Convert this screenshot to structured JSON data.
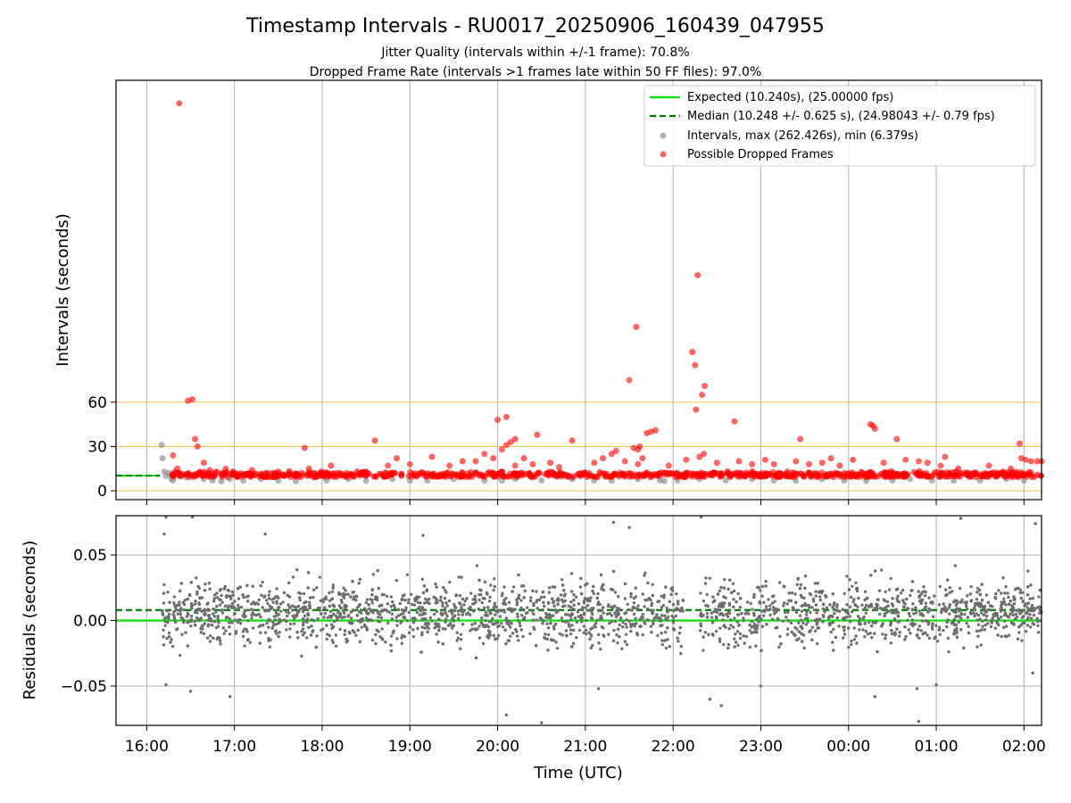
{
  "title": "Timestamp Intervals - RU0017_20250906_160439_047955",
  "subtitle1": "Jitter Quality (intervals within +/-1 frame): 70.8%",
  "subtitle2": "Dropped Frame Rate (intervals >1 frames late within 50 FF files): 97.0%",
  "colors": {
    "expected": "#00e600",
    "median": "#007f00",
    "intervals": "#808080",
    "dropped": "#ff0000",
    "threshold": "#ffa500",
    "grid": "#b0b0b0"
  },
  "chart_data": [
    {
      "type": "scatter",
      "title": "",
      "xlabel": "",
      "ylabel": "Intervals (seconds)",
      "x_unit": "hours since 16:00 UTC",
      "xlim": [
        -0.35,
        10.2
      ],
      "ylim": [
        -6,
        278
      ],
      "yticks": [
        0,
        30,
        60
      ],
      "xticks": [
        0,
        1,
        2,
        3,
        4,
        5,
        6,
        7,
        8,
        9,
        10
      ],
      "xtick_labels": [
        "16:00",
        "17:00",
        "18:00",
        "19:00",
        "20:00",
        "21:00",
        "22:00",
        "23:00",
        "00:00",
        "01:00",
        "02:00"
      ],
      "threshold_lines": [
        0,
        30,
        60
      ],
      "grid": "x",
      "legend_position": "top-right",
      "legend": [
        "Expected (10.240s), (25.00000 fps)",
        "Median (10.248 +/- 0.625 s), (24.98043 +/- 0.79 fps)",
        "Intervals, max (262.426s), min (6.379s)",
        "Possible Dropped Frames"
      ],
      "expected_value": 10.24,
      "median_value": 10.248,
      "reference_lines_xrange": [
        -0.35,
        0.15
      ],
      "series": [
        {
          "name": "Intervals, max (262.426s), min (6.379s)",
          "points": [
            [
              0.17,
              31
            ],
            [
              0.18,
              22
            ],
            [
              0.2,
              13
            ],
            [
              0.22,
              10
            ],
            [
              0.25,
              12
            ],
            [
              0.28,
              8
            ],
            [
              0.3,
              7
            ],
            [
              0.45,
              9
            ],
            [
              0.65,
              8
            ],
            [
              0.75,
              7
            ],
            [
              0.85,
              6.4
            ],
            [
              0.95,
              8
            ],
            [
              1.1,
              7
            ],
            [
              1.3,
              8
            ],
            [
              1.5,
              7
            ],
            [
              1.7,
              6.5
            ],
            [
              1.9,
              9
            ],
            [
              2.05,
              7
            ],
            [
              2.3,
              8
            ],
            [
              2.5,
              6.8
            ],
            [
              2.8,
              8
            ],
            [
              3.0,
              7
            ],
            [
              3.2,
              6.9
            ],
            [
              3.5,
              8
            ],
            [
              3.85,
              7
            ],
            [
              4.05,
              6.8
            ],
            [
              4.2,
              8
            ],
            [
              4.5,
              7
            ],
            [
              4.85,
              8
            ],
            [
              5.1,
              7
            ],
            [
              5.3,
              6.9
            ],
            [
              5.6,
              8
            ],
            [
              5.85,
              7
            ],
            [
              5.9,
              6.6
            ],
            [
              6.05,
              7
            ],
            [
              6.3,
              8
            ],
            [
              6.6,
              7
            ],
            [
              6.9,
              8
            ],
            [
              7.15,
              7
            ],
            [
              7.4,
              6.8
            ],
            [
              7.7,
              8
            ],
            [
              7.95,
              7
            ],
            [
              8.2,
              6.7
            ],
            [
              8.5,
              7
            ],
            [
              8.7,
              8
            ],
            [
              8.95,
              7
            ],
            [
              9.2,
              6.9
            ],
            [
              9.5,
              7
            ],
            [
              9.8,
              8
            ],
            [
              10.0,
              7
            ]
          ]
        },
        {
          "name": "Possible Dropped Frames",
          "points": [
            [
              0.37,
              262.4
            ],
            [
              0.47,
              61
            ],
            [
              0.52,
              62
            ],
            [
              0.55,
              35
            ],
            [
              0.58,
              30
            ],
            [
              0.3,
              24
            ],
            [
              0.35,
              15
            ],
            [
              0.65,
              19
            ],
            [
              0.72,
              14
            ],
            [
              0.9,
              15
            ],
            [
              1.2,
              14
            ],
            [
              1.5,
              13
            ],
            [
              1.8,
              29
            ],
            [
              1.85,
              15
            ],
            [
              2.1,
              17
            ],
            [
              2.4,
              13
            ],
            [
              2.6,
              34
            ],
            [
              2.75,
              17
            ],
            [
              2.85,
              22
            ],
            [
              3.0,
              18
            ],
            [
              3.25,
              23
            ],
            [
              3.45,
              17
            ],
            [
              3.6,
              20
            ],
            [
              3.75,
              20
            ],
            [
              3.85,
              25
            ],
            [
              3.95,
              22
            ],
            [
              4.05,
              28
            ],
            [
              4.1,
              31
            ],
            [
              4.15,
              33
            ],
            [
              4.2,
              35
            ],
            [
              4.0,
              48
            ],
            [
              4.1,
              50
            ],
            [
              4.3,
              22
            ],
            [
              4.2,
              17
            ],
            [
              4.4,
              18
            ],
            [
              4.45,
              38
            ],
            [
              4.6,
              19
            ],
            [
              4.7,
              16
            ],
            [
              4.85,
              34
            ],
            [
              5.1,
              19
            ],
            [
              5.2,
              22
            ],
            [
              5.3,
              25
            ],
            [
              5.35,
              27
            ],
            [
              5.45,
              20
            ],
            [
              5.55,
              29
            ],
            [
              5.6,
              28
            ],
            [
              5.62,
              30
            ],
            [
              5.5,
              75
            ],
            [
              5.58,
              111
            ],
            [
              5.6,
              18
            ],
            [
              5.65,
              22
            ],
            [
              5.7,
              39
            ],
            [
              5.75,
              40
            ],
            [
              5.8,
              41
            ],
            [
              5.95,
              17
            ],
            [
              6.15,
              21
            ],
            [
              6.22,
              94
            ],
            [
              6.25,
              85
            ],
            [
              6.28,
              146
            ],
            [
              6.26,
              55
            ],
            [
              6.33,
              65
            ],
            [
              6.36,
              71
            ],
            [
              6.3,
              23
            ],
            [
              6.35,
              25
            ],
            [
              6.5,
              19
            ],
            [
              6.7,
              47
            ],
            [
              6.75,
              20
            ],
            [
              6.9,
              18
            ],
            [
              7.05,
              21
            ],
            [
              7.15,
              18
            ],
            [
              7.4,
              20
            ],
            [
              7.45,
              35
            ],
            [
              7.55,
              18
            ],
            [
              7.7,
              19
            ],
            [
              7.8,
              22
            ],
            [
              7.9,
              17
            ],
            [
              8.05,
              21
            ],
            [
              8.25,
              45
            ],
            [
              8.28,
              44
            ],
            [
              8.3,
              42
            ],
            [
              8.4,
              19
            ],
            [
              8.55,
              35
            ],
            [
              8.65,
              21
            ],
            [
              8.8,
              20
            ],
            [
              8.9,
              19
            ],
            [
              9.05,
              17
            ],
            [
              9.1,
              23
            ],
            [
              9.25,
              15
            ],
            [
              9.6,
              17
            ],
            [
              9.85,
              15
            ],
            [
              9.95,
              32
            ],
            [
              9.97,
              22
            ],
            [
              10.02,
              21
            ],
            [
              10.08,
              20
            ],
            [
              10.15,
              20
            ],
            [
              10.2,
              20
            ]
          ],
          "band_note": "plus a continuous band of overlapping points between 8 and 14 s across the whole time range"
        }
      ]
    },
    {
      "type": "scatter",
      "title": "",
      "xlabel": "Time (UTC)",
      "ylabel": "Residuals (seconds)",
      "x_unit": "hours since 16:00 UTC",
      "xlim": [
        -0.35,
        10.2
      ],
      "ylim": [
        -0.08,
        0.08
      ],
      "yticks": [
        -0.05,
        0.0,
        0.05
      ],
      "ytick_labels": [
        "−0.05",
        "0.00",
        "0.05"
      ],
      "xticks": [
        0,
        1,
        2,
        3,
        4,
        5,
        6,
        7,
        8,
        9,
        10
      ],
      "xtick_labels": [
        "16:00",
        "17:00",
        "18:00",
        "19:00",
        "20:00",
        "21:00",
        "22:00",
        "23:00",
        "00:00",
        "01:00",
        "02:00"
      ],
      "grid": "both",
      "expected_value": 0.0,
      "median_value": 0.008,
      "series": [
        {
          "name": "",
          "points": [
            [
              0.22,
              0.079
            ],
            [
              0.52,
              0.079
            ],
            [
              5.32,
              0.075
            ],
            [
              6.32,
              0.079
            ],
            [
              9.28,
              0.078
            ],
            [
              10.13,
              0.074
            ],
            [
              0.2,
              0.066
            ],
            [
              1.35,
              0.066
            ],
            [
              3.15,
              0.065
            ],
            [
              5.5,
              0.071
            ],
            [
              0.22,
              -0.049
            ],
            [
              0.5,
              -0.054
            ],
            [
              0.95,
              -0.058
            ],
            [
              4.1,
              -0.072
            ],
            [
              4.5,
              -0.078
            ],
            [
              5.15,
              -0.052
            ],
            [
              6.42,
              -0.06
            ],
            [
              6.55,
              -0.065
            ],
            [
              7.0,
              -0.05
            ],
            [
              8.3,
              -0.058
            ],
            [
              8.78,
              -0.052
            ],
            [
              8.8,
              -0.077
            ],
            [
              9.0,
              -0.049
            ],
            [
              10.1,
              -0.04
            ]
          ],
          "band_note": "plus a dense cloud of points roughly between -0.03 and +0.04 s across the time range (a gap near 22:15)"
        }
      ]
    }
  ]
}
